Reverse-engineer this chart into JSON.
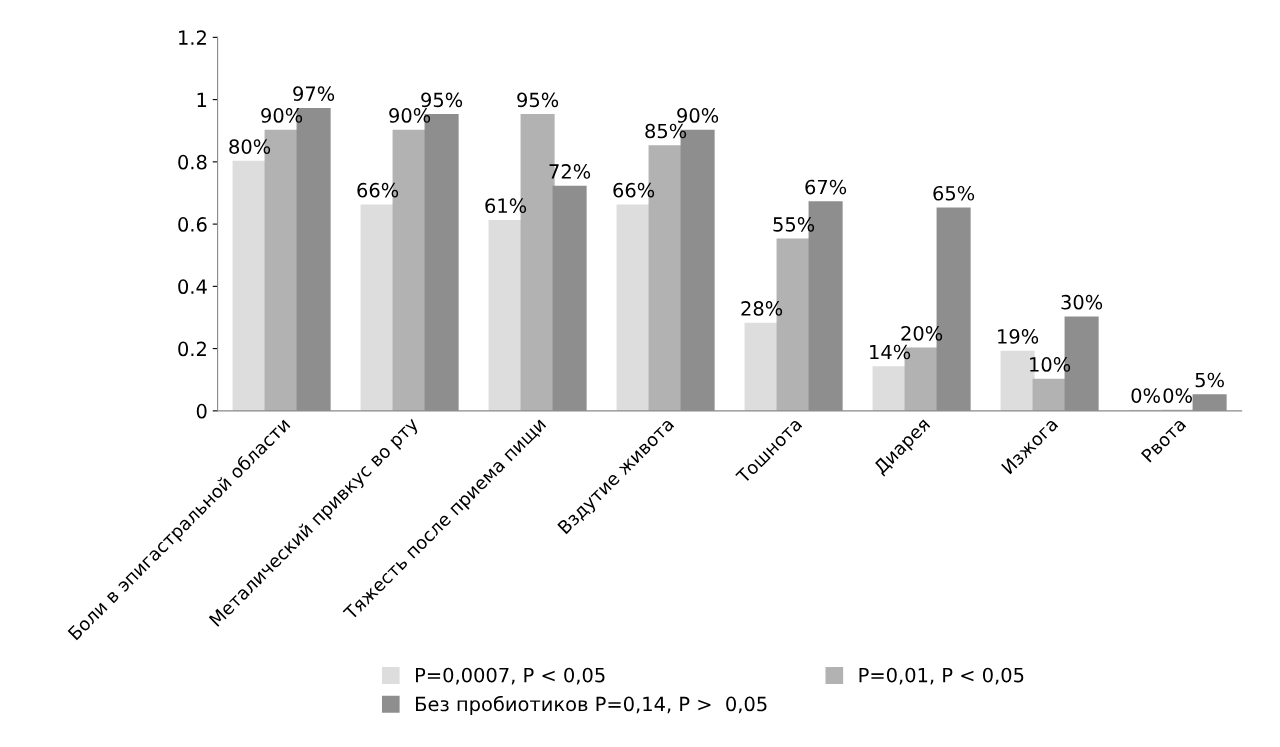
{
  "chart_data": {
    "type": "bar",
    "categories": [
      "Боли в эпигастральной области",
      "Металический привкус во рту",
      "Тяжесть после приема пищи",
      "Вздутие живота",
      "Тошнота",
      "Диарея",
      "Изжога",
      "Рвота"
    ],
    "series": [
      {
        "name": "P=0,0007, P < 0,05",
        "color": "#dddddd",
        "values": [
          0.8,
          0.66,
          0.61,
          0.66,
          0.28,
          0.14,
          0.19,
          0
        ],
        "value_labels": [
          "80%",
          "66%",
          "61%",
          "66%",
          "28%",
          "14%",
          "19%",
          "0%"
        ]
      },
      {
        "name": "P=0,01, P < 0,05",
        "color": "#b2b2b2",
        "values": [
          0.9,
          0.9,
          0.95,
          0.85,
          0.55,
          0.2,
          0.1,
          0
        ],
        "value_labels": [
          "90%",
          "90%",
          "95%",
          "85%",
          "55%",
          "20%",
          "10%",
          "0%"
        ]
      },
      {
        "name": "Без пробиотиков P=0,14, P >  0,05",
        "color": "#8e8e8e",
        "values": [
          0.97,
          0.95,
          0.72,
          0.9,
          0.67,
          0.65,
          0.3,
          0.05
        ],
        "value_labels": [
          "97%",
          "95%",
          "72%",
          "90%",
          "67%",
          "65%",
          "30%",
          "5%"
        ]
      }
    ],
    "ylim": [
      0,
      1.2
    ],
    "yticks": [
      0,
      0.2,
      0.4,
      0.6,
      0.8,
      1,
      1.2
    ],
    "grid": false,
    "legend": "bottom"
  }
}
